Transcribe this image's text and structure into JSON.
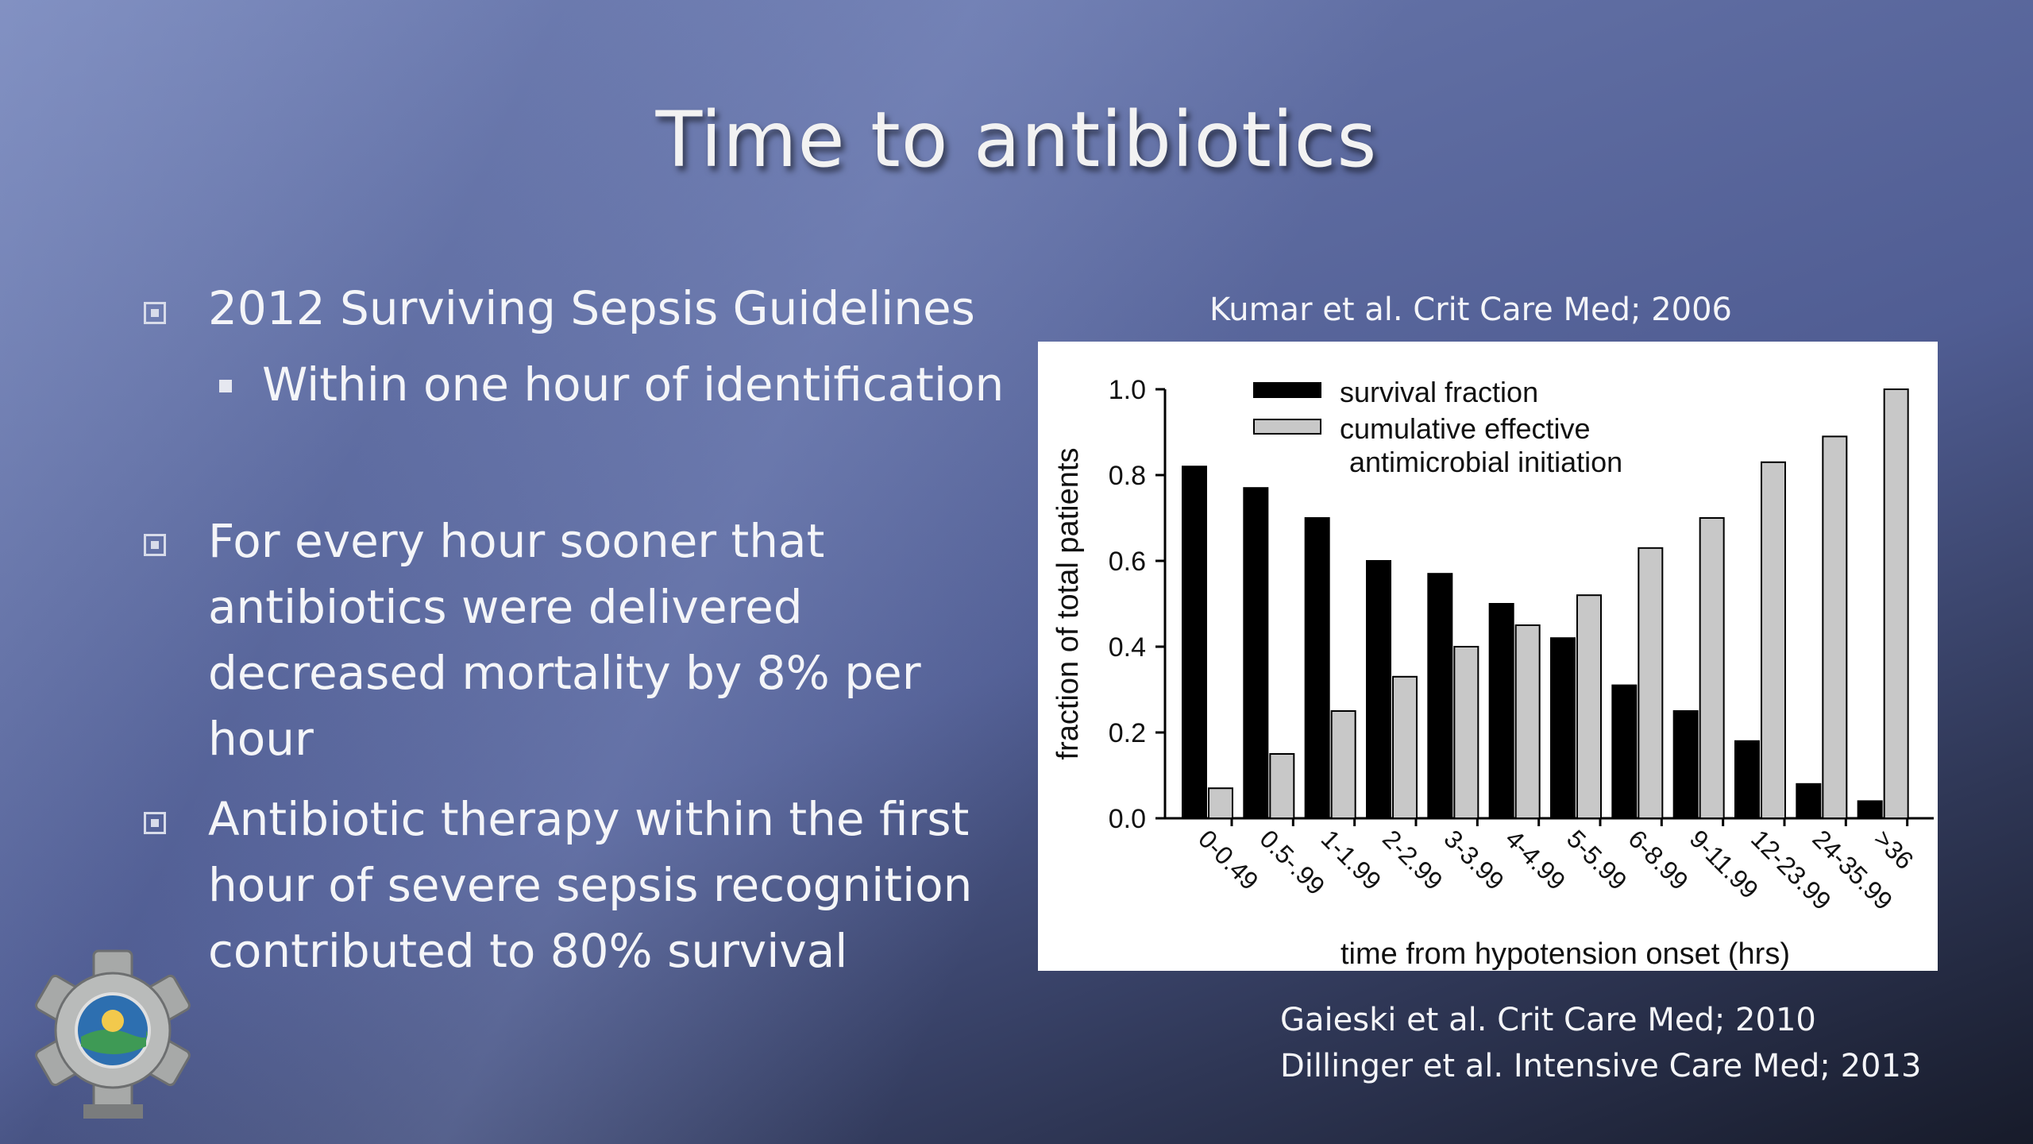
{
  "slide": {
    "title": "Time to antibiotics",
    "bullets": [
      {
        "text": "2012 Surviving Sepsis Guidelines",
        "sub": "Within one hour of identification"
      },
      {
        "lines": [
          "For every hour sooner that",
          "antibiotics were delivered",
          "decreased mortality by 8% per",
          "hour"
        ]
      },
      {
        "lines": [
          "Antibiotic therapy within the first",
          "hour of severe sepsis recognition",
          "contributed to 80% survival"
        ]
      }
    ],
    "citation_top": "Kumar et al. Crit Care Med; 2006",
    "citations_bottom": [
      "Gaieski et al. Crit Care Med; 2010",
      "Dillinger et al. Intensive Care Med; 2013"
    ],
    "logo_icon": "ems-star-of-life-badge-icon"
  },
  "chart_data": {
    "type": "bar",
    "categories": [
      "0-0.49",
      "0.5-.99",
      "1-1.99",
      "2-2.99",
      "3-3.99",
      "4-4.99",
      "5-5.99",
      "6-8.99",
      "9-11.99",
      "12-23.99",
      "24-35.99",
      ">36"
    ],
    "series": [
      {
        "name": "survival fraction",
        "color": "#000000",
        "values": [
          0.82,
          0.77,
          0.7,
          0.6,
          0.57,
          0.5,
          0.42,
          0.31,
          0.25,
          0.18,
          0.08,
          0.04
        ]
      },
      {
        "name": "cumulative effective antimicrobial initiation",
        "color": "#c8c8c8",
        "values": [
          0.07,
          0.15,
          0.25,
          0.33,
          0.4,
          0.45,
          0.52,
          0.63,
          0.7,
          0.83,
          0.89,
          1.0
        ]
      }
    ],
    "legend_lines": [
      "survival fraction",
      "cumulative effective",
      "antimicrobial initiation"
    ],
    "xlabel": "time from hypotension onset (hrs)",
    "ylabel": "fraction of total patients",
    "yticks": [
      "0.0",
      "0.2",
      "0.4",
      "0.6",
      "0.8",
      "1.0"
    ],
    "ylim": [
      0,
      1.0
    ],
    "grid": false,
    "legend_position": "top-left"
  }
}
